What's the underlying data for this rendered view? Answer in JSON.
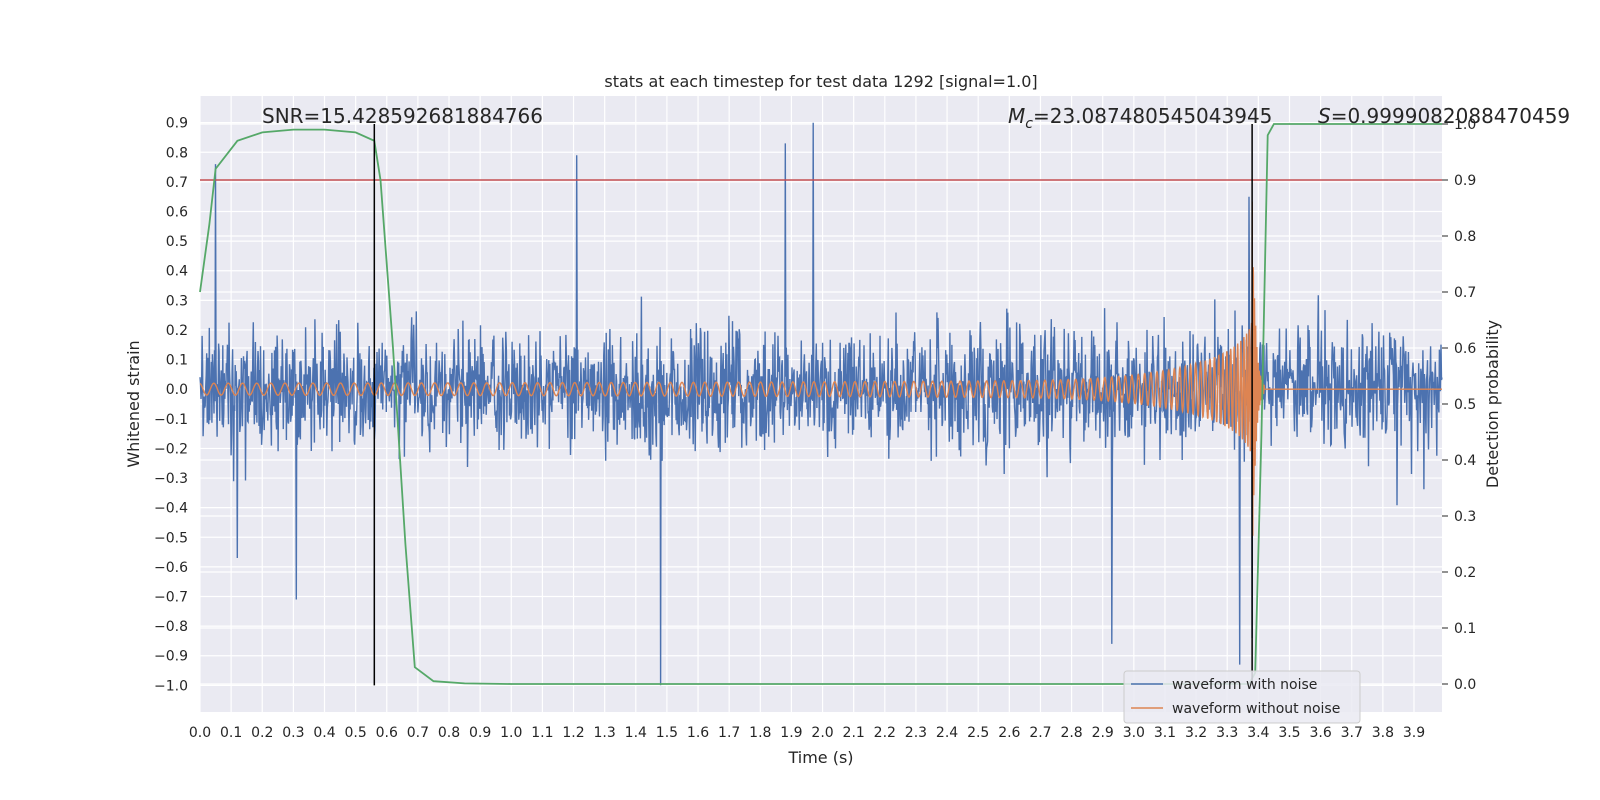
{
  "chart_data": {
    "type": "line",
    "title": "stats at each timestep for test data 1292 [signal=1.0]",
    "xlabel": "Time (s)",
    "ylabel_left": "Whitened strain",
    "ylabel_right": "Detection probability",
    "xlim": [
      0.0,
      3.99
    ],
    "ylim_left": [
      -1.09,
      0.99
    ],
    "ylim_right": [
      -0.05,
      1.05
    ],
    "x_ticks": [
      "0.0",
      "0.1",
      "0.2",
      "0.3",
      "0.4",
      "0.5",
      "0.6",
      "0.7",
      "0.8",
      "0.9",
      "1.0",
      "1.1",
      "1.2",
      "1.3",
      "1.4",
      "1.5",
      "1.6",
      "1.7",
      "1.8",
      "1.9",
      "2.0",
      "2.1",
      "2.2",
      "2.3",
      "2.4",
      "2.5",
      "2.6",
      "2.7",
      "2.8",
      "2.9",
      "3.0",
      "3.1",
      "3.2",
      "3.3",
      "3.4",
      "3.5",
      "3.6",
      "3.7",
      "3.8",
      "3.9"
    ],
    "y_ticks_left": [
      "0.9",
      "0.8",
      "0.7",
      "0.6",
      "0.5",
      "0.4",
      "0.3",
      "0.2",
      "0.1",
      "0.0",
      "−0.1",
      "−0.2",
      "−0.3",
      "−0.4",
      "−0.5",
      "−0.6",
      "−0.7",
      "−0.8",
      "−0.9",
      "−1.0"
    ],
    "y_ticks_right": [
      "1.0",
      "0.9",
      "0.8",
      "0.7",
      "0.6",
      "0.5",
      "0.4",
      "0.3",
      "0.2",
      "0.1",
      "0.0"
    ],
    "grid": true,
    "legend_placement": "lower-right",
    "annotations": {
      "snr": "SNR=15.428592681884766",
      "mc_symbol": "M",
      "mc_sub": "c",
      "mc_value": "=23.087480545043945",
      "s_symbol": "S",
      "s_value": "=0.9999082088470459"
    },
    "series": [
      {
        "name": "waveform with noise",
        "color": "#4c72b0",
        "axis": "left",
        "note": "dense whitened-strain noise, envelope approx ±0.5 with spikes",
        "spikes": [
          [
            0.05,
            0.76
          ],
          [
            0.12,
            -0.57
          ],
          [
            0.31,
            -0.71
          ],
          [
            1.21,
            0.79
          ],
          [
            1.48,
            -1.0
          ],
          [
            1.88,
            0.83
          ],
          [
            1.97,
            0.9
          ],
          [
            2.93,
            -0.86
          ],
          [
            3.34,
            -0.93
          ],
          [
            3.37,
            0.65
          ],
          [
            3.38,
            -0.84
          ]
        ]
      },
      {
        "name": "waveform without noise",
        "color": "#dd8452",
        "axis": "left",
        "chirp": {
          "start": 0.0,
          "merger": 3.38,
          "end_ringdown": 3.42,
          "amp_start": 0.02,
          "amp_peak": 0.68
        }
      },
      {
        "name": "",
        "color": "#55a868",
        "axis": "right",
        "x": [
          0.0,
          0.03,
          0.05,
          0.12,
          0.2,
          0.3,
          0.4,
          0.5,
          0.56,
          0.58,
          0.62,
          0.66,
          0.69,
          0.75,
          0.85,
          1.0,
          1.5,
          2.0,
          2.5,
          3.0,
          3.3,
          3.37,
          3.39,
          3.41,
          3.43,
          3.45,
          3.5,
          3.6,
          3.99
        ],
        "values": [
          0.7,
          0.82,
          0.92,
          0.97,
          0.985,
          0.99,
          0.99,
          0.985,
          0.97,
          0.9,
          0.6,
          0.25,
          0.03,
          0.005,
          0.001,
          0.0,
          0.0,
          0.0,
          0.0,
          0.0,
          0.0,
          0.0,
          0.02,
          0.45,
          0.98,
          1.0,
          1.0,
          1.0,
          1.0
        ]
      }
    ],
    "threshold_line": {
      "value": 0.9,
      "axis": "right",
      "color": "#c44e52"
    },
    "vertical_lines": [
      0.56,
      3.38
    ]
  }
}
